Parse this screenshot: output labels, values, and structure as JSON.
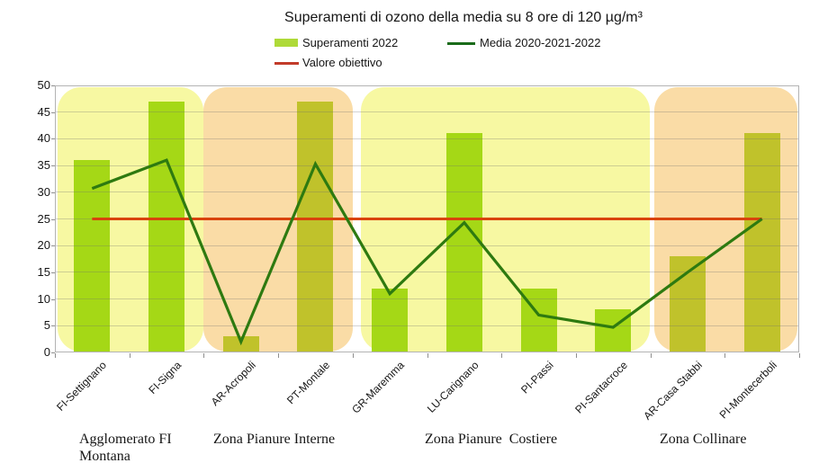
{
  "title": "Superamenti di ozono della media su 8 ore di 120 µg/m³",
  "legend": [
    {
      "label": "Superamenti 2022"
    },
    {
      "label": "Media 2020-2021-2022"
    },
    {
      "label": "Valore obiettivo"
    }
  ],
  "colors": {
    "band_yellow": "#f7f8a2",
    "band_orange": "#fadca6",
    "bar_yellow_zone": "#a5d816",
    "bar_orange_zone": "#c0c22b",
    "legend_bar_swatch": "#aeda38",
    "media_line": "#2e7a10",
    "legend_media_line": "#1a6b1a",
    "target_line": "#d9430d",
    "legend_target_line": "#c23b2a",
    "gridline": "rgba(110,110,110,0.30)",
    "axis": "#b3b3b3",
    "tick": "#8f8f8f",
    "text": "#161616"
  },
  "chart_data": {
    "type": "bar",
    "title": "Superamenti di ozono della media su 8 ore di 120 µg/m³",
    "categories": [
      "FI-Settignano",
      "FI-Signa",
      "AR-Acropoli",
      "PT-Montale",
      "GR-Maremma",
      "LU-Carignano",
      "PI-Passi",
      "PI-Santacroce",
      "AR-Casa Stabbi",
      "PI-Montecerboli"
    ],
    "series": [
      {
        "name": "Superamenti 2022",
        "type": "bar",
        "values": [
          36,
          47,
          3,
          47,
          12,
          41,
          12,
          8,
          18,
          41
        ]
      },
      {
        "name": "Media 2020-2021-2022",
        "type": "line",
        "values": [
          30.7,
          36,
          2,
          35.3,
          11,
          24.3,
          7,
          4.7,
          15,
          25
        ]
      },
      {
        "name": "Valore obiettivo",
        "type": "hline",
        "value": 25
      }
    ],
    "ylim": [
      0,
      50
    ],
    "ytick_step": 5,
    "grid": true,
    "legend_position": "top",
    "zones": [
      {
        "label": "Agglomerato FI Montana",
        "band": "yellow",
        "from_cat": 0,
        "to_cat": 1
      },
      {
        "label": "Zona Pianure Interne",
        "band": "orange",
        "from_cat": 2,
        "to_cat": 3
      },
      {
        "label": "Zona Pianure  Costiere",
        "band": "yellow",
        "from_cat": 4,
        "to_cat": 7
      },
      {
        "label": "Zona Collinare",
        "band": "orange",
        "from_cat": 8,
        "to_cat": 9
      }
    ]
  }
}
